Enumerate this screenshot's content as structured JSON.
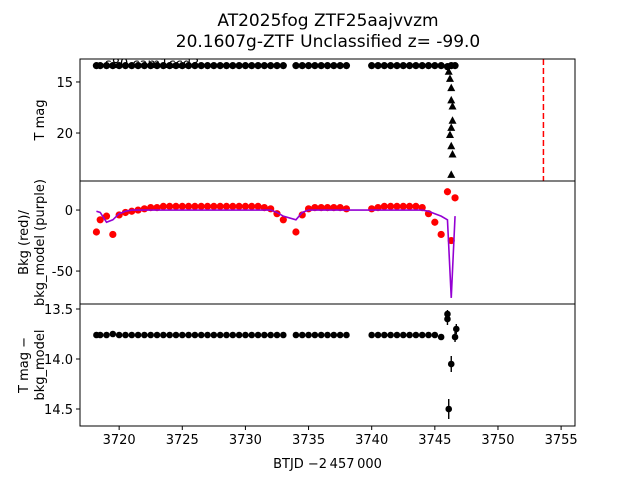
{
  "chart_data": [
    {
      "type": "scatter",
      "title": [
        "AT2025fog  ZTF25aajvvzm",
        "20.1607g-ZTF Unclassified z= -99.0"
      ],
      "ylabel": [
        "T mag"
      ],
      "annotation": "s80 cam1ccd3",
      "ylim": [
        24.7,
        12.75
      ],
      "yticks": [
        15,
        20
      ],
      "xlim": [
        3716.9,
        3756.1
      ],
      "series": [
        {
          "type": "scatter",
          "marker": "circle",
          "color": "#000000",
          "x": [
            3718.2,
            3718.5,
            3719,
            3719.5,
            3720,
            3720.5,
            3721,
            3721.5,
            3722,
            3722.5,
            3723,
            3723.5,
            3724,
            3724.5,
            3725,
            3725.5,
            3726,
            3726.5,
            3727,
            3727.5,
            3728,
            3728.5,
            3729,
            3729.5,
            3730,
            3730.5,
            3731,
            3731.5,
            3732,
            3732.5,
            3733,
            3734,
            3734.5,
            3735,
            3735.5,
            3736,
            3736.5,
            3737,
            3737.5,
            3738,
            3740,
            3740.5,
            3741,
            3741.5,
            3742,
            3742.5,
            3743,
            3743.5,
            3744,
            3744.5,
            3745,
            3745.5,
            3746,
            3746.3,
            3746.6
          ],
          "values": [
            13.4,
            13.4,
            13.4,
            13.4,
            13.4,
            13.4,
            13.4,
            13.4,
            13.4,
            13.4,
            13.4,
            13.4,
            13.4,
            13.4,
            13.4,
            13.4,
            13.4,
            13.4,
            13.4,
            13.4,
            13.4,
            13.4,
            13.4,
            13.4,
            13.4,
            13.4,
            13.4,
            13.4,
            13.4,
            13.4,
            13.4,
            13.4,
            13.4,
            13.4,
            13.4,
            13.4,
            13.4,
            13.4,
            13.4,
            13.4,
            13.4,
            13.4,
            13.4,
            13.4,
            13.4,
            13.4,
            13.4,
            13.4,
            13.4,
            13.4,
            13.4,
            13.4,
            13.5,
            13.4,
            13.4
          ]
        },
        {
          "type": "scatter",
          "marker": "triangle",
          "color": "#000000",
          "x": [
            3746.1,
            3746.2,
            3746.3,
            3746.3,
            3746.4,
            3746.4,
            3746.3,
            3746.2,
            3746.3,
            3746.4,
            3746.3
          ],
          "values": [
            14.0,
            14.7,
            15.6,
            16.8,
            17.4,
            18.8,
            19.5,
            20.2,
            21.3,
            22.1,
            24.1
          ]
        }
      ],
      "vlines": [
        {
          "x": 3753.6,
          "color": "#ff0000"
        }
      ]
    },
    {
      "type": "scatter",
      "ylabel": [
        "Bkg (red)/",
        "bkg_model (purple)"
      ],
      "ylim": [
        -77,
        23.8
      ],
      "yticks": [
        0,
        -50
      ],
      "xlim": [
        3716.9,
        3756.1
      ],
      "series": [
        {
          "type": "scatter",
          "marker": "circle",
          "color": "#ff0000",
          "x": [
            3718.2,
            3718.5,
            3719,
            3719.5,
            3720,
            3720.5,
            3721,
            3721.5,
            3722,
            3722.5,
            3723,
            3723.5,
            3724,
            3724.5,
            3725,
            3725.5,
            3726,
            3726.5,
            3727,
            3727.5,
            3728,
            3728.5,
            3729,
            3729.5,
            3730,
            3730.5,
            3731,
            3731.5,
            3732,
            3732.5,
            3733,
            3734,
            3734.5,
            3735,
            3735.5,
            3736,
            3736.5,
            3737,
            3737.5,
            3738,
            3740,
            3740.5,
            3741,
            3741.5,
            3742,
            3742.5,
            3743,
            3743.5,
            3744,
            3744.5,
            3745,
            3745.5,
            3746,
            3746.3,
            3746.6
          ],
          "values": [
            -18,
            -8,
            -5,
            -20,
            -4,
            -2,
            -1,
            0,
            1,
            2,
            2,
            3,
            3,
            3,
            3,
            3,
            3,
            3,
            3,
            3,
            3,
            3,
            3,
            3,
            3,
            3,
            3,
            2,
            1,
            -3,
            -8,
            -18,
            -4,
            1,
            2,
            2,
            2,
            2,
            2,
            1,
            1,
            2,
            3,
            3,
            3,
            3,
            3,
            3,
            2,
            -3,
            -10,
            -20,
            15,
            -25,
            10
          ]
        },
        {
          "type": "line",
          "color": "#9400d3",
          "x": [
            3718.2,
            3718.5,
            3719,
            3719.5,
            3720,
            3720.5,
            3721,
            3721.5,
            3722,
            3722.5,
            3723,
            3723.5,
            3724,
            3724.5,
            3725,
            3725.5,
            3726,
            3726.5,
            3727,
            3727.5,
            3728,
            3728.5,
            3729,
            3729.5,
            3730,
            3730.5,
            3731,
            3731.5,
            3732,
            3732.5,
            3733,
            3734,
            3734.5,
            3735,
            3735.5,
            3736,
            3736.5,
            3737,
            3737.5,
            3738,
            3740,
            3740.5,
            3741,
            3741.5,
            3742,
            3742.5,
            3743,
            3743.5,
            3744,
            3744.5,
            3745,
            3745.5,
            3746,
            3746.3,
            3746.6
          ],
          "values": [
            -1,
            -2,
            -10,
            -8,
            -3,
            -1,
            0,
            0,
            0,
            0,
            0,
            0,
            0,
            0,
            0,
            0,
            0,
            0,
            0,
            0,
            0,
            0,
            0,
            0,
            0,
            0,
            0,
            0,
            0,
            -2,
            -5,
            -8,
            -2,
            0,
            0,
            0,
            0,
            0,
            0,
            0,
            0,
            0,
            0,
            0,
            0,
            0,
            0,
            0,
            0,
            -1,
            -3,
            -5,
            -8,
            -72,
            -5
          ]
        }
      ]
    },
    {
      "type": "scatter",
      "ylabel": [
        "T mag −",
        "bkg_model"
      ],
      "xlabel": "BTJD −2 457 000",
      "ylim": [
        14.67,
        13.45
      ],
      "yticks": [
        13.5,
        {
          "value": 14,
          "label": "14.0"
        },
        14.5
      ],
      "xlim": [
        3716.9,
        3756.1
      ],
      "xticks": [
        3720,
        3725,
        3730,
        3735,
        3740,
        3745,
        3750,
        3755
      ],
      "series": [
        {
          "type": "errorbar",
          "marker": "circle",
          "color": "#000000",
          "x": [
            3718.2,
            3718.5,
            3719,
            3719.5,
            3720,
            3720.5,
            3721,
            3721.5,
            3722,
            3722.5,
            3723,
            3723.5,
            3724,
            3724.5,
            3725,
            3725.5,
            3726,
            3726.5,
            3727,
            3727.5,
            3728,
            3728.5,
            3729,
            3729.5,
            3730,
            3730.5,
            3731,
            3731.5,
            3732,
            3732.5,
            3733,
            3734,
            3734.5,
            3735,
            3735.5,
            3736,
            3736.5,
            3737,
            3737.5,
            3738,
            3740,
            3740.5,
            3741,
            3741.5,
            3742,
            3742.5,
            3743,
            3743.5,
            3744,
            3744.5,
            3745,
            3745.5,
            3746,
            3746.3,
            3746.6
          ],
          "values": [
            13.76,
            13.76,
            13.76,
            13.75,
            13.76,
            13.76,
            13.76,
            13.76,
            13.76,
            13.76,
            13.76,
            13.76,
            13.76,
            13.76,
            13.76,
            13.76,
            13.76,
            13.76,
            13.76,
            13.76,
            13.76,
            13.76,
            13.76,
            13.76,
            13.76,
            13.76,
            13.76,
            13.76,
            13.76,
            13.76,
            13.76,
            13.76,
            13.76,
            13.76,
            13.76,
            13.76,
            13.76,
            13.76,
            13.76,
            13.76,
            13.76,
            13.76,
            13.76,
            13.76,
            13.76,
            13.76,
            13.76,
            13.76,
            13.76,
            13.76,
            13.76,
            13.78,
            13.6,
            14.05,
            13.78
          ],
          "errors": [
            0.02,
            0.02,
            0.02,
            0.02,
            0.02,
            0.02,
            0.02,
            0.02,
            0.02,
            0.02,
            0.02,
            0.02,
            0.02,
            0.02,
            0.02,
            0.02,
            0.02,
            0.02,
            0.02,
            0.02,
            0.02,
            0.02,
            0.02,
            0.02,
            0.02,
            0.02,
            0.02,
            0.02,
            0.02,
            0.02,
            0.02,
            0.02,
            0.02,
            0.02,
            0.02,
            0.02,
            0.02,
            0.02,
            0.02,
            0.02,
            0.02,
            0.02,
            0.02,
            0.02,
            0.02,
            0.02,
            0.02,
            0.02,
            0.02,
            0.02,
            0.02,
            0.03,
            0.06,
            0.08,
            0.05
          ]
        },
        {
          "type": "errorbar",
          "marker": "circle",
          "color": "#000000",
          "x": [
            3746.0,
            3746.1,
            3746.7
          ],
          "values": [
            13.55,
            14.5,
            13.7
          ],
          "errors": [
            0.04,
            0.1,
            0.05
          ]
        }
      ]
    }
  ]
}
